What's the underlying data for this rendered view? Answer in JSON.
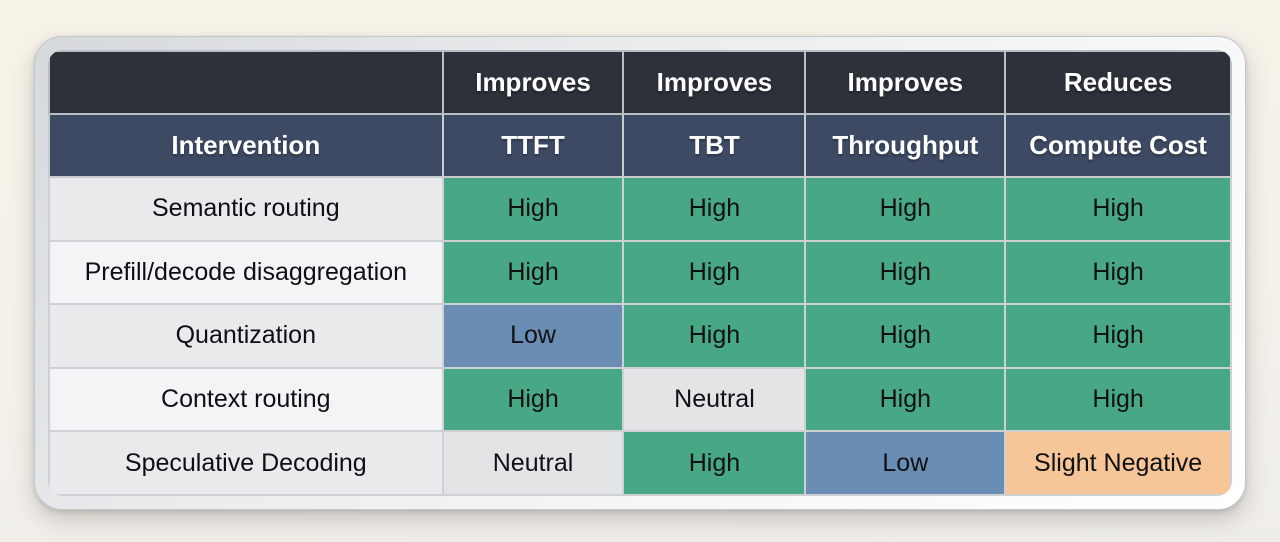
{
  "page": {
    "background_top": "#f6f2e7",
    "background_bottom": "#efedea"
  },
  "card": {
    "frame_gradient_start": "#d6d9dc",
    "frame_gradient_end": "#ffffff"
  },
  "table": {
    "header_top": [
      "",
      "Improves",
      "Improves",
      "Improves",
      "Reduces"
    ],
    "header_bottom": [
      "Intervention",
      "TTFT",
      "TBT",
      "Throughput",
      "Compute Cost"
    ],
    "header_top_bg": "#2d313a",
    "header_bottom_bg": "#3e4a64",
    "grid_line_color": "#cdd1d5",
    "level_colors": {
      "high": "#48a885",
      "low": "#6a8db3",
      "neutral": "#e2e4e5",
      "slight_negative": "#f6c598"
    },
    "intervention_row_colors": [
      "#e8eaec",
      "#f3f4f5"
    ],
    "rows": [
      {
        "intervention": "Semantic routing",
        "values": [
          {
            "label": "High",
            "level": "high"
          },
          {
            "label": "High",
            "level": "high"
          },
          {
            "label": "High",
            "level": "high"
          },
          {
            "label": "High",
            "level": "high"
          }
        ]
      },
      {
        "intervention": "Prefill/decode disaggregation",
        "values": [
          {
            "label": "High",
            "level": "high"
          },
          {
            "label": "High",
            "level": "high"
          },
          {
            "label": "High",
            "level": "high"
          },
          {
            "label": "High",
            "level": "high"
          }
        ]
      },
      {
        "intervention": "Quantization",
        "values": [
          {
            "label": "Low",
            "level": "low"
          },
          {
            "label": "High",
            "level": "high"
          },
          {
            "label": "High",
            "level": "high"
          },
          {
            "label": "High",
            "level": "high"
          }
        ]
      },
      {
        "intervention": "Context routing",
        "values": [
          {
            "label": "High",
            "level": "high"
          },
          {
            "label": "Neutral",
            "level": "neutral"
          },
          {
            "label": "High",
            "level": "high"
          },
          {
            "label": "High",
            "level": "high"
          }
        ]
      },
      {
        "intervention": "Speculative Decoding",
        "values": [
          {
            "label": "Neutral",
            "level": "neutral"
          },
          {
            "label": "High",
            "level": "high"
          },
          {
            "label": "Low",
            "level": "low"
          },
          {
            "label": "Slight Negative",
            "level": "slight_negative"
          }
        ]
      }
    ]
  },
  "chart_data": {
    "type": "table",
    "title": "",
    "columns": [
      "Intervention",
      "Improves TTFT",
      "Improves TBT",
      "Improves Throughput",
      "Reduces Compute Cost"
    ],
    "rows": [
      [
        "Semantic routing",
        "High",
        "High",
        "High",
        "High"
      ],
      [
        "Prefill/decode disaggregation",
        "High",
        "High",
        "High",
        "High"
      ],
      [
        "Quantization",
        "Low",
        "High",
        "High",
        "High"
      ],
      [
        "Context routing",
        "High",
        "Neutral",
        "High",
        "High"
      ],
      [
        "Speculative Decoding",
        "Neutral",
        "High",
        "Low",
        "Slight Negative"
      ]
    ],
    "legend": {
      "High": "green",
      "Low": "blue",
      "Neutral": "gray",
      "Slight Negative": "orange"
    }
  }
}
